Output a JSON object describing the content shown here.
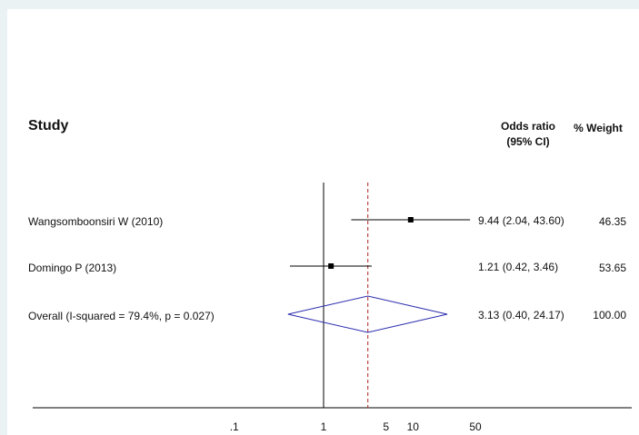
{
  "chart_data": {
    "type": "forest",
    "headers": {
      "study": "Study",
      "effect_line1": "Odds ratio",
      "effect_line2": "(95% CI)",
      "weight": "% Weight"
    },
    "studies": [
      {
        "label": "Wangsomboonsiri W (2010)",
        "or": 9.44,
        "lo": 2.04,
        "hi": 43.6,
        "ci_text": "9.44 (2.04, 43.60)",
        "weight": "46.35"
      },
      {
        "label": "Domingo P (2013)",
        "or": 1.21,
        "lo": 0.42,
        "hi": 3.46,
        "ci_text": "1.21 (0.42, 3.46)",
        "weight": "53.65"
      }
    ],
    "overall": {
      "label": "Overall  (I-squared = 79.4%, p = 0.027)",
      "or": 3.13,
      "lo": 0.4,
      "hi": 24.17,
      "ci_text": "3.13 (0.40, 24.17)",
      "weight": "100.00"
    },
    "x_scale": "log",
    "x_ticks": [
      0.1,
      1,
      5,
      10,
      50
    ],
    "x_tick_labels": [
      ".1",
      "1",
      "5",
      "10",
      "50"
    ],
    "null_line": 1,
    "colors": {
      "line": "#000000",
      "diamond": "#2b2bb0",
      "overall_line": "#b02020",
      "panel_bg": "#ffffff",
      "outer_bg": "#eaf2f3"
    }
  }
}
